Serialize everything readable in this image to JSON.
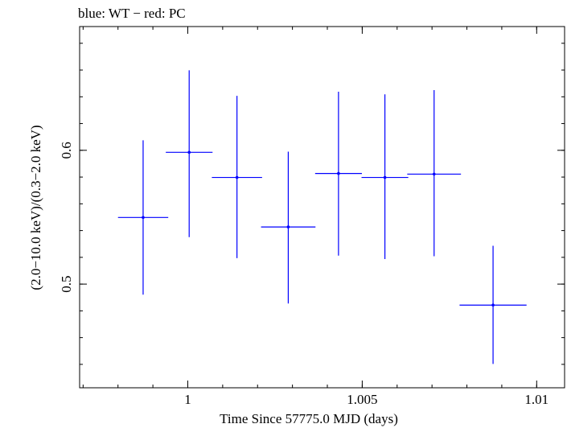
{
  "chart_data": {
    "type": "scatter",
    "title": "blue: WT − red: PC",
    "xlabel": "Time Since 57775.0 MJD (days)",
    "ylabel": "(2.0−10.0 keV)/(0.3−2.0 keV)",
    "xlim": [
      0.9969,
      1.0108
    ],
    "ylim": [
      0.4225,
      0.6925
    ],
    "x_ticks": [
      {
        "value": 1.0,
        "label": "1"
      },
      {
        "value": 1.005,
        "label": "1.005"
      },
      {
        "value": 1.01,
        "label": "1.01"
      }
    ],
    "y_ticks": [
      {
        "value": 0.5,
        "label": "0.5"
      },
      {
        "value": 0.6,
        "label": "0.6"
      }
    ],
    "series": [
      {
        "name": "WT",
        "color": "#0000ff",
        "points": [
          {
            "x": 0.99872,
            "xerr": 0.00072,
            "y": 0.5498,
            "yerr_low": 0.0577,
            "yerr_high": 0.0577
          },
          {
            "x": 1.00004,
            "xerr": 0.00067,
            "y": 0.5985,
            "yerr_low": 0.0634,
            "yerr_high": 0.0613
          },
          {
            "x": 1.00141,
            "xerr": 0.00072,
            "y": 0.5797,
            "yerr_low": 0.0603,
            "yerr_high": 0.061
          },
          {
            "x": 1.00288,
            "xerr": 0.00078,
            "y": 0.5427,
            "yerr_low": 0.0572,
            "yerr_high": 0.0563
          },
          {
            "x": 1.00432,
            "xerr": 0.00067,
            "y": 0.5827,
            "yerr_low": 0.0614,
            "yerr_high": 0.0611
          },
          {
            "x": 1.00565,
            "xerr": 0.00067,
            "y": 0.5797,
            "yerr_low": 0.061,
            "yerr_high": 0.0621
          },
          {
            "x": 1.00706,
            "xerr": 0.00077,
            "y": 0.5822,
            "yerr_low": 0.0614,
            "yerr_high": 0.0628
          },
          {
            "x": 1.00875,
            "xerr": 0.00096,
            "y": 0.4843,
            "yerr_low": 0.044,
            "yerr_high": 0.0443
          }
        ]
      }
    ]
  }
}
